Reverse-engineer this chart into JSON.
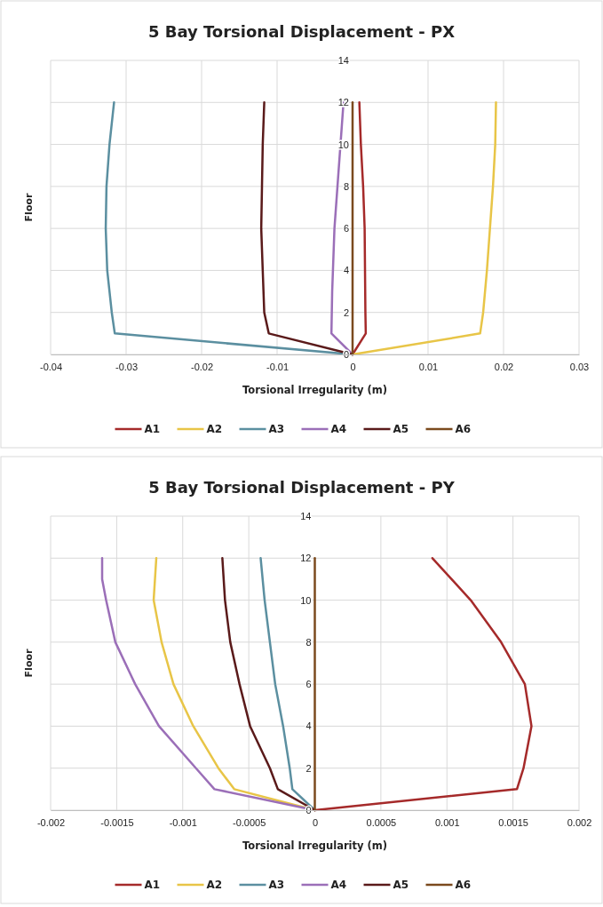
{
  "chart_data": [
    {
      "type": "line",
      "title": "5 Bay Torsional Displacement - PX",
      "xlabel": "Torsional Irregularity (m)",
      "ylabel": "Floor",
      "xlim": [
        -0.04,
        0.03
      ],
      "xticks": [
        -0.04,
        -0.03,
        -0.02,
        -0.01,
        0,
        0.01,
        0.02,
        0.03
      ],
      "ylim": [
        0,
        14
      ],
      "yticks": [
        0,
        2,
        4,
        6,
        8,
        10,
        12,
        14
      ],
      "grid": true,
      "legend": "bottom",
      "line_style": "solid",
      "marker": "none",
      "series": [
        {
          "name": "A1",
          "color": "#a52a2a",
          "x": [
            0,
            0.00175,
            0.0017,
            0.0016,
            0.0014,
            0.0011,
            0.0009
          ],
          "values": [
            0,
            1,
            2,
            6,
            8,
            10,
            12
          ]
        },
        {
          "name": "A2",
          "color": "#e8c547",
          "x": [
            0,
            0.0169,
            0.0173,
            0.0178,
            0.0186,
            0.0189,
            0.019
          ],
          "values": [
            0,
            1,
            2,
            4,
            8,
            10,
            12
          ]
        },
        {
          "name": "A3",
          "color": "#5b8fa0",
          "x": [
            0,
            -0.0315,
            -0.0319,
            -0.0325,
            -0.0327,
            -0.0326,
            -0.0322,
            -0.0316
          ],
          "values": [
            0,
            1,
            2,
            4,
            6,
            8,
            10,
            12
          ]
        },
        {
          "name": "A4",
          "color": "#9b6fb8",
          "x": [
            0,
            -0.0028,
            -0.0027,
            -0.0026,
            -0.0024,
            -0.002,
            -0.0016,
            -0.0012
          ],
          "values": [
            0,
            1,
            3,
            4,
            6,
            8,
            10,
            12
          ]
        },
        {
          "name": "A5",
          "color": "#5a1a1a",
          "x": [
            0,
            -0.0111,
            -0.0117,
            -0.0119,
            -0.0121,
            -0.012,
            -0.0119,
            -0.0117
          ],
          "values": [
            0,
            1,
            2,
            4,
            6,
            8,
            10,
            12
          ]
        },
        {
          "name": "A6",
          "color": "#7b4a1e",
          "x": [
            0,
            0,
            0,
            0,
            0,
            0,
            0,
            0
          ],
          "values": [
            0,
            1,
            2,
            4,
            6,
            8,
            10,
            12
          ]
        }
      ]
    },
    {
      "type": "line",
      "title": "5 Bay Torsional Displacement - PY",
      "xlabel": "Torsional Irregularity (m)",
      "ylabel": "Floor",
      "xlim": [
        -0.002,
        0.002
      ],
      "xticks": [
        -0.002,
        -0.0015,
        -0.001,
        -0.0005,
        0,
        0.0005,
        0.001,
        0.0015,
        0.002
      ],
      "ylim": [
        0,
        14
      ],
      "yticks": [
        0,
        2,
        4,
        6,
        8,
        10,
        12,
        14
      ],
      "grid": true,
      "legend": "bottom",
      "line_style": "solid",
      "marker": "none",
      "series": [
        {
          "name": "A1",
          "color": "#a52a2a",
          "x": [
            0,
            0.00153,
            0.00158,
            0.00164,
            0.00159,
            0.00141,
            0.00118,
            0.00089
          ],
          "values": [
            0,
            1,
            2,
            4,
            6,
            8,
            10,
            12
          ]
        },
        {
          "name": "A2",
          "color": "#e8c547",
          "x": [
            0,
            -0.00061,
            -0.00073,
            -0.00092,
            -0.00107,
            -0.00116,
            -0.00122,
            -0.0012
          ],
          "values": [
            0,
            1,
            2,
            4,
            6,
            8,
            10,
            12
          ]
        },
        {
          "name": "A3",
          "color": "#5b8fa0",
          "x": [
            0,
            -0.00017,
            -0.00019,
            -0.00024,
            -0.0003,
            -0.00034,
            -0.00038,
            -0.00041
          ],
          "values": [
            0,
            1,
            2,
            4,
            6,
            8,
            10,
            12
          ]
        },
        {
          "name": "A4",
          "color": "#9b6fb8",
          "x": [
            0,
            -0.00076,
            -0.0009,
            -0.00118,
            -0.00136,
            -0.00151,
            -0.00158,
            -0.00161,
            -0.00161
          ],
          "values": [
            0,
            1,
            2,
            4,
            6,
            8,
            10,
            11,
            12
          ]
        },
        {
          "name": "A5",
          "color": "#5a1a1a",
          "x": [
            0,
            -0.00028,
            -0.00034,
            -0.00049,
            -0.00057,
            -0.00064,
            -0.00068,
            -0.0007
          ],
          "values": [
            0,
            1,
            2,
            4,
            6,
            8,
            10,
            12
          ]
        },
        {
          "name": "A6",
          "color": "#7b4a1e",
          "x": [
            0,
            0,
            0,
            0,
            0,
            0,
            0,
            0
          ],
          "values": [
            0,
            1,
            2,
            4,
            6,
            8,
            10,
            12
          ]
        }
      ]
    }
  ]
}
